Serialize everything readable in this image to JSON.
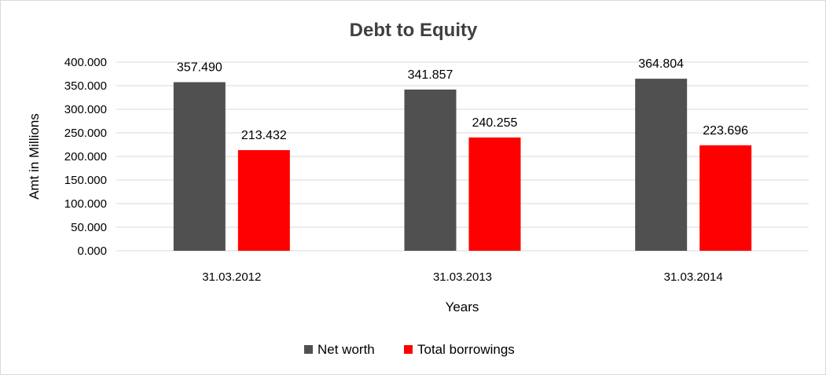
{
  "chart_data": {
    "type": "bar",
    "title": "Debt to Equity",
    "xlabel": "Years",
    "ylabel": "Amt in Millions",
    "categories": [
      "31.03.2012",
      "31.03.2013",
      "31.03.2014"
    ],
    "series": [
      {
        "name": "Net worth",
        "values": [
          357.49,
          341.857,
          364.804
        ],
        "labels": [
          "357.490",
          "341.857",
          "364.804"
        ],
        "color": "#505050"
      },
      {
        "name": "Total borrowings",
        "values": [
          213.432,
          240.255,
          223.696
        ],
        "labels": [
          "213.432",
          "240.255",
          "223.696"
        ],
        "color": "#ff0000"
      }
    ],
    "ylim": [
      0,
      400
    ],
    "yticks": [
      0,
      50,
      100,
      150,
      200,
      250,
      300,
      350,
      400
    ],
    "ytick_labels": [
      "0.000",
      "50.000",
      "100.000",
      "150.000",
      "200.000",
      "250.000",
      "300.000",
      "350.000",
      "400.000"
    ],
    "grid": true,
    "gridline_color": "#d9d9d9",
    "legend_position": "bottom"
  }
}
